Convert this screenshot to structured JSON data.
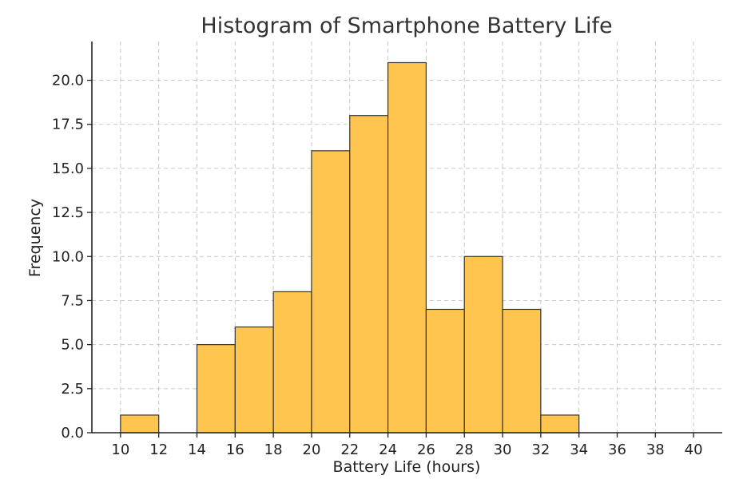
{
  "chart_data": {
    "type": "bar",
    "title": "Histogram of Smartphone Battery Life",
    "xlabel": "Battery Life (hours)",
    "ylabel": "Frequency",
    "xlim": [
      8.5,
      41.5
    ],
    "ylim": [
      0,
      22.2
    ],
    "x_ticks": [
      "10",
      "12",
      "14",
      "16",
      "18",
      "20",
      "22",
      "24",
      "26",
      "28",
      "30",
      "32",
      "34",
      "36",
      "38",
      "40"
    ],
    "y_ticks": [
      "0.0",
      "2.5",
      "5.0",
      "7.5",
      "10.0",
      "12.5",
      "15.0",
      "17.5",
      "20.0"
    ],
    "bins": [
      {
        "start": 10,
        "end": 12,
        "value": 1
      },
      {
        "start": 12,
        "end": 14,
        "value": 0
      },
      {
        "start": 14,
        "end": 16,
        "value": 5
      },
      {
        "start": 16,
        "end": 18,
        "value": 6
      },
      {
        "start": 18,
        "end": 20,
        "value": 8
      },
      {
        "start": 20,
        "end": 22,
        "value": 16
      },
      {
        "start": 22,
        "end": 24,
        "value": 18
      },
      {
        "start": 24,
        "end": 26,
        "value": 21
      },
      {
        "start": 26,
        "end": 28,
        "value": 7
      },
      {
        "start": 28,
        "end": 30,
        "value": 10
      },
      {
        "start": 30,
        "end": 32,
        "value": 7
      },
      {
        "start": 32,
        "end": 34,
        "value": 1
      }
    ],
    "bar_color": "#ffc54f",
    "edge_color": "#333333",
    "grid": true,
    "legend": "none"
  }
}
